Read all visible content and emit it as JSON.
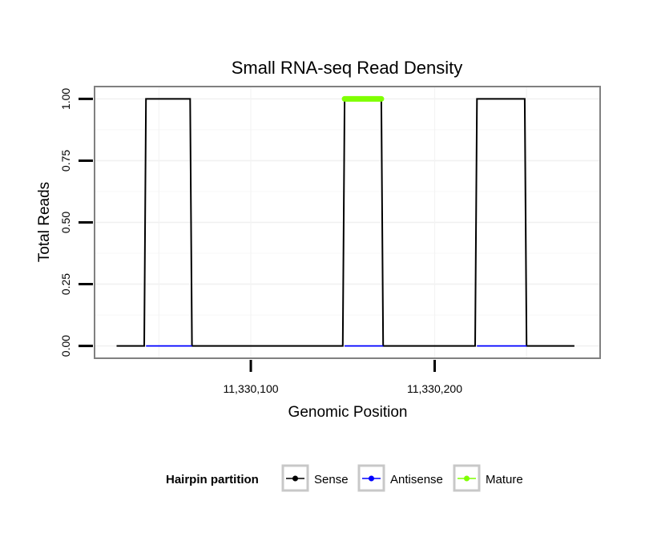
{
  "chart_data": {
    "type": "line",
    "title": "Small RNA-seq Read Density",
    "xlabel": "Genomic Position",
    "ylabel": "Total Reads",
    "xlim": [
      11330015,
      11330290
    ],
    "ylim": [
      -0.05,
      1.05
    ],
    "x_ticks": [
      {
        "value": 11330100,
        "label": "11,330,100"
      },
      {
        "value": 11330200,
        "label": "11,330,200"
      }
    ],
    "y_ticks": [
      {
        "value": 0.0,
        "label": "0.00"
      },
      {
        "value": 0.25,
        "label": "0.25"
      },
      {
        "value": 0.5,
        "label": "0.50"
      },
      {
        "value": 0.75,
        "label": "0.75"
      },
      {
        "value": 1.0,
        "label": "1.00"
      }
    ],
    "series": [
      {
        "name": "Sense",
        "color": "#000000",
        "x": [
          11330027,
          11330042,
          11330043,
          11330067,
          11330068,
          11330150,
          11330151,
          11330171,
          11330172,
          11330222,
          11330223,
          11330249,
          11330250,
          11330276
        ],
        "y": [
          0,
          0,
          1,
          1,
          0,
          0,
          1,
          1,
          0,
          0,
          1,
          1,
          0,
          0
        ]
      },
      {
        "name": "Antisense",
        "color": "#0000ff",
        "segments": [
          {
            "x": [
              11330043,
              11330068
            ],
            "y": [
              0,
              0
            ]
          },
          {
            "x": [
              11330151,
              11330172
            ],
            "y": [
              0,
              0
            ]
          },
          {
            "x": [
              11330223,
              11330250
            ],
            "y": [
              0,
              0
            ]
          }
        ]
      },
      {
        "name": "Mature",
        "color": "#7fff00",
        "segments": [
          {
            "x": [
              11330151,
              11330171
            ],
            "y": [
              1,
              1
            ]
          }
        ]
      }
    ],
    "legend": {
      "title": "Hairpin partition",
      "position": "bottom",
      "entries": [
        {
          "label": "Sense",
          "color": "#000000"
        },
        {
          "label": "Antisense",
          "color": "#0000ff"
        },
        {
          "label": "Mature",
          "color": "#7fff00"
        }
      ]
    },
    "grid": true
  }
}
